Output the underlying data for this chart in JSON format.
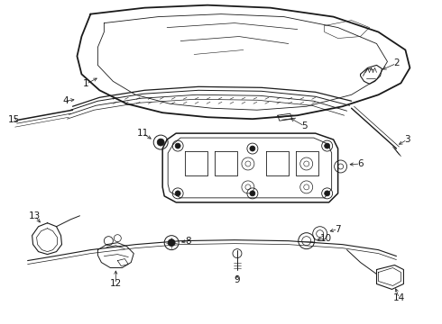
{
  "background_color": "#ffffff",
  "fig_width": 4.9,
  "fig_height": 3.6,
  "dpi": 100,
  "line_color": "#1a1a1a",
  "label_fontsize": 7.5
}
